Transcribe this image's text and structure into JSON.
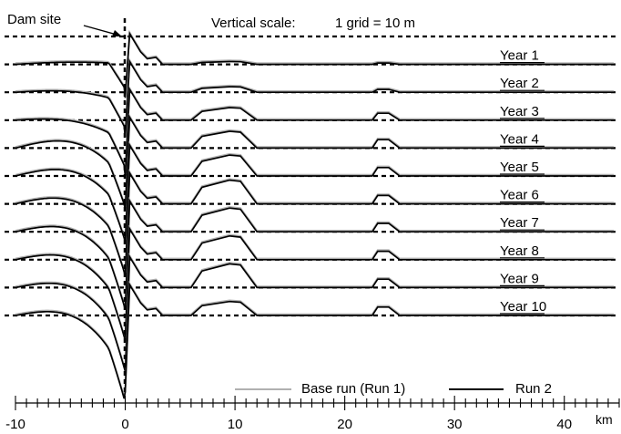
{
  "chart_data": {
    "type": "line",
    "x_unit": "km",
    "xlim": [
      -10,
      45
    ],
    "x_ticks": [
      -10,
      0,
      10,
      20,
      30,
      40
    ],
    "scale_note": {
      "label": "Vertical scale:",
      "value": "1 grid = 10 m"
    },
    "dam_label": "Dam site",
    "dam_x": 0,
    "legend": [
      {
        "label": "Base run (Run 1)",
        "color": "#b0b0b0"
      },
      {
        "label": "Run 2",
        "color": "#000000"
      }
    ],
    "grid_lines": 11,
    "years": [
      {
        "label": "Year 1",
        "upstream_depth": 0.0,
        "mound": 0.1,
        "bump": 0.05
      },
      {
        "label": "Year 2",
        "upstream_depth": 0.4,
        "mound": 0.2,
        "bump": 0.1
      },
      {
        "label": "Year 3",
        "upstream_depth": 0.8,
        "mound": 0.45,
        "bump": 0.25
      },
      {
        "label": "Year 4",
        "upstream_depth": 1.0,
        "mound": 0.6,
        "bump": 0.3
      },
      {
        "label": "Year 5",
        "upstream_depth": 1.2,
        "mound": 0.75,
        "bump": 0.3
      },
      {
        "label": "Year 6",
        "upstream_depth": 1.4,
        "mound": 0.85,
        "bump": 0.3
      },
      {
        "label": "Year 7",
        "upstream_depth": 1.6,
        "mound": 0.85,
        "bump": 0.3
      },
      {
        "label": "Year 8",
        "upstream_depth": 1.7,
        "mound": 0.85,
        "bump": 0.3
      },
      {
        "label": "Year 9",
        "upstream_depth": 1.8,
        "mound": 0.85,
        "bump": 0.3
      },
      {
        "label": "Year 10",
        "upstream_depth": 1.9,
        "mound": 0.5,
        "bump": 0.3
      }
    ],
    "grid": true
  }
}
